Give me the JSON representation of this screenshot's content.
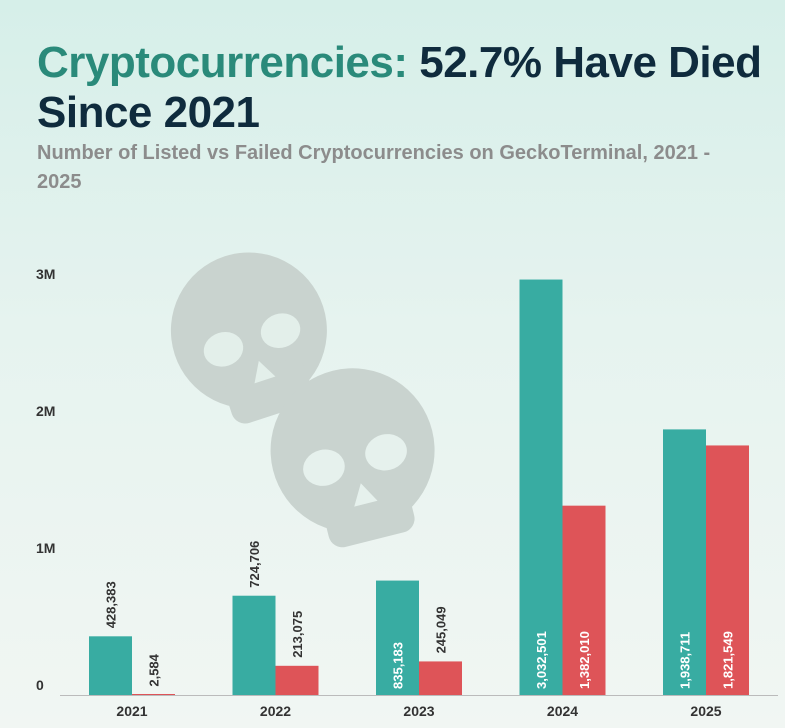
{
  "title_highlight": "Cryptocurrencies:",
  "title_rest": " 52.7% Have Died Since 2021",
  "subtitle": "Number of Listed vs Failed Cryptocurrencies on GeckoTerminal, 2021 - 2025",
  "decor_icon": "skull-icon",
  "chart_data": {
    "type": "bar",
    "title": "Cryptocurrencies: 52.7% Have Died Since 2021",
    "subtitle": "Number of Listed vs Failed Cryptocurrencies on GeckoTerminal, 2021 - 2025",
    "categories": [
      "2021",
      "2022",
      "2023",
      "2024",
      "2025"
    ],
    "series": [
      {
        "values": [
          428383,
          724706,
          835183,
          3032501,
          1938711
        ],
        "labels": [
          "428,383",
          "724,706",
          "835,183",
          "3,032,501",
          "1,938,711"
        ],
        "color": "#38aca2"
      },
      {
        "values": [
          2584,
          213075,
          245049,
          1382010,
          1821549
        ],
        "labels": [
          "2,584",
          "213,075",
          "245,049",
          "1,382,010",
          "1,821,549"
        ],
        "color": "#de5458"
      }
    ],
    "yticks": [
      0,
      1000000,
      2000000,
      3000000
    ],
    "ytick_labels": [
      "0",
      "1M",
      "2M",
      "3M"
    ],
    "ylim": [
      0,
      3100000
    ],
    "grid": false,
    "legend": "none"
  }
}
